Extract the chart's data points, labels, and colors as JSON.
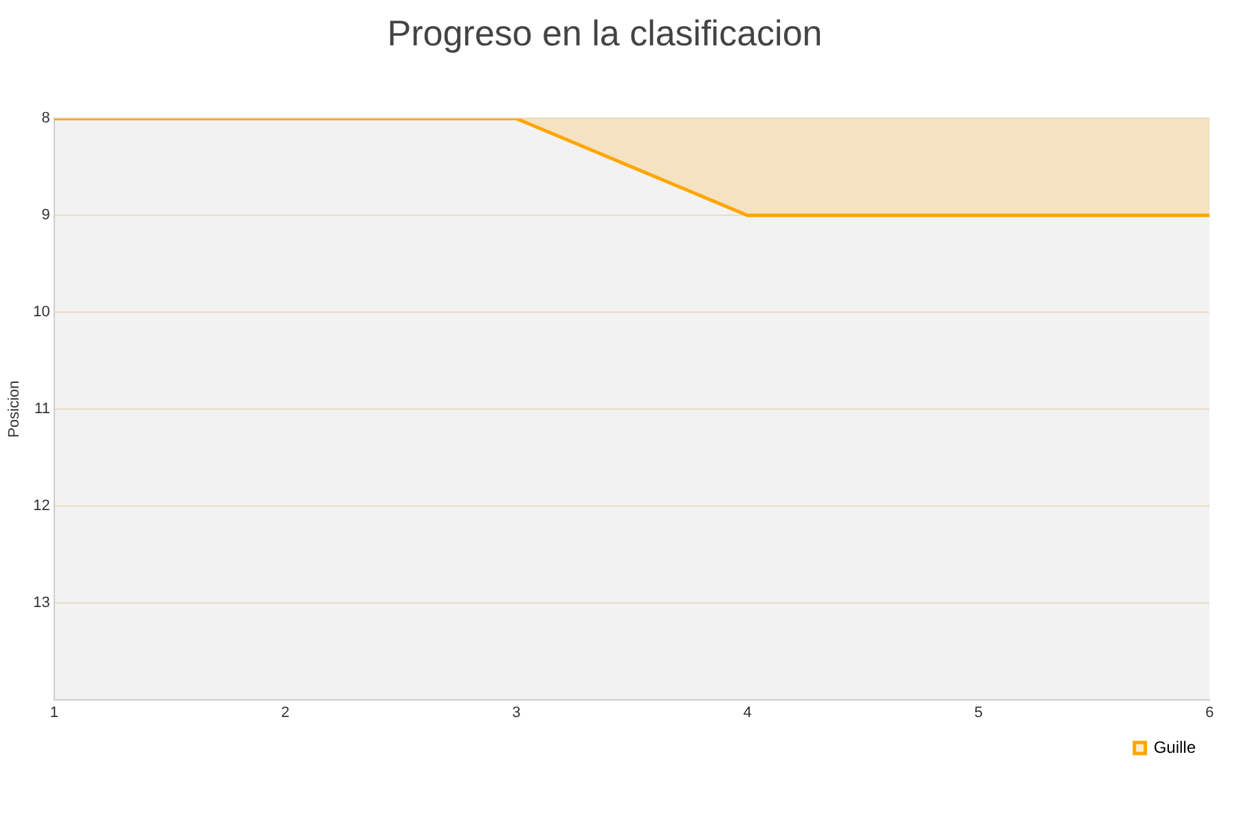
{
  "chart_data": {
    "type": "area",
    "title": "Progreso en la clasificacion",
    "ylabel": "Posicion",
    "x": [
      1,
      2,
      3,
      4,
      5,
      6
    ],
    "series": [
      {
        "name": "Guille",
        "color": "#ffa500",
        "values": [
          8,
          8,
          8,
          9,
          9,
          9
        ]
      }
    ],
    "xlim": [
      1,
      6
    ],
    "xticks": [
      1,
      2,
      3,
      4,
      5,
      6
    ],
    "ylim": [
      14,
      8
    ],
    "yticks": [
      8,
      9,
      10,
      11,
      12,
      13,
      {
        "value": 14,
        "label": null
      }
    ],
    "grid": "y",
    "legend": "bottom right",
    "marker": "none",
    "line_style": "solid"
  }
}
